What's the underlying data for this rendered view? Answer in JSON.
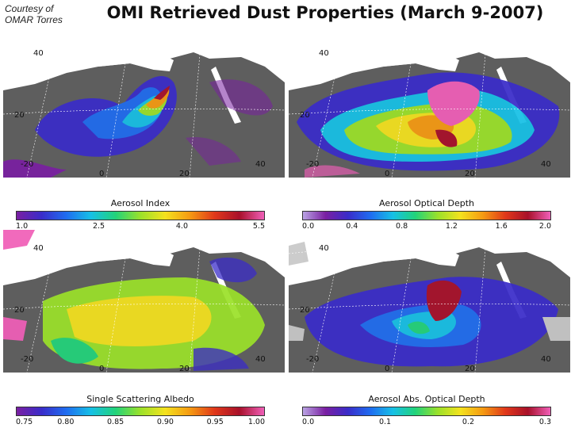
{
  "credit": {
    "line1": "Courtesy of",
    "line2": "OMAR Torres"
  },
  "title": "OMI Retrieved Dust Properties (March 9-2007)",
  "map_labels": {
    "lat40": "40",
    "lat20": "20",
    "lon_m20": "-20",
    "lon0": "0",
    "lon20": "20",
    "lon40": "40"
  },
  "panels": [
    {
      "id": "aerosol-index",
      "colorbar_label": "Aerosol Index",
      "colors": [
        "#7a1fa2",
        "#3a2cc9",
        "#1f6cf0",
        "#16c0e6",
        "#22d37a",
        "#9be12a",
        "#f4e21e",
        "#f59a12",
        "#e0381a",
        "#a8102a",
        "#f05fb8"
      ],
      "ticks": [
        {
          "label": "1.0",
          "pos": 0.0
        },
        {
          "label": "2.5",
          "pos": 0.333
        },
        {
          "label": "4.0",
          "pos": 0.667
        },
        {
          "label": "5.5",
          "pos": 1.0
        }
      ]
    },
    {
      "id": "aerosol-optical-depth",
      "colorbar_label": "Aerosol Optical Depth",
      "colors": [
        "#b9a3e3",
        "#7a1fa2",
        "#3a2cc9",
        "#1f6cf0",
        "#16c0e6",
        "#22d37a",
        "#9be12a",
        "#f4e21e",
        "#f59a12",
        "#e0381a",
        "#a8102a",
        "#f05fb8"
      ],
      "ticks": [
        {
          "label": "0.0",
          "pos": 0.0
        },
        {
          "label": "0.4",
          "pos": 0.2
        },
        {
          "label": "0.8",
          "pos": 0.4
        },
        {
          "label": "1.2",
          "pos": 0.6
        },
        {
          "label": "1.6",
          "pos": 0.8
        },
        {
          "label": "2.0",
          "pos": 1.0
        }
      ]
    },
    {
      "id": "single-scattering-albedo",
      "colorbar_label": "Single Scattering Albedo",
      "colors": [
        "#7a1fa2",
        "#3a2cc9",
        "#1f6cf0",
        "#16c0e6",
        "#22d37a",
        "#9be12a",
        "#f4e21e",
        "#f59a12",
        "#e0381a",
        "#a8102a",
        "#f05fb8"
      ],
      "ticks": [
        {
          "label": "0.75",
          "pos": 0.0
        },
        {
          "label": "0.80",
          "pos": 0.2
        },
        {
          "label": "0.85",
          "pos": 0.4
        },
        {
          "label": "0.90",
          "pos": 0.6
        },
        {
          "label": "0.95",
          "pos": 0.8
        },
        {
          "label": "1.00",
          "pos": 1.0
        }
      ]
    },
    {
      "id": "aerosol-abs-optical-depth",
      "colorbar_label": "Aerosol Abs. Optical Depth",
      "colors": [
        "#b9a3e3",
        "#7a1fa2",
        "#3a2cc9",
        "#1f6cf0",
        "#16c0e6",
        "#22d37a",
        "#9be12a",
        "#f4e21e",
        "#f59a12",
        "#e0381a",
        "#a8102a",
        "#f05fb8"
      ],
      "ticks": [
        {
          "label": "0.0",
          "pos": 0.0
        },
        {
          "label": "0.1",
          "pos": 0.333
        },
        {
          "label": "0.2",
          "pos": 0.667
        },
        {
          "label": "0.3",
          "pos": 1.0
        }
      ]
    }
  ]
}
